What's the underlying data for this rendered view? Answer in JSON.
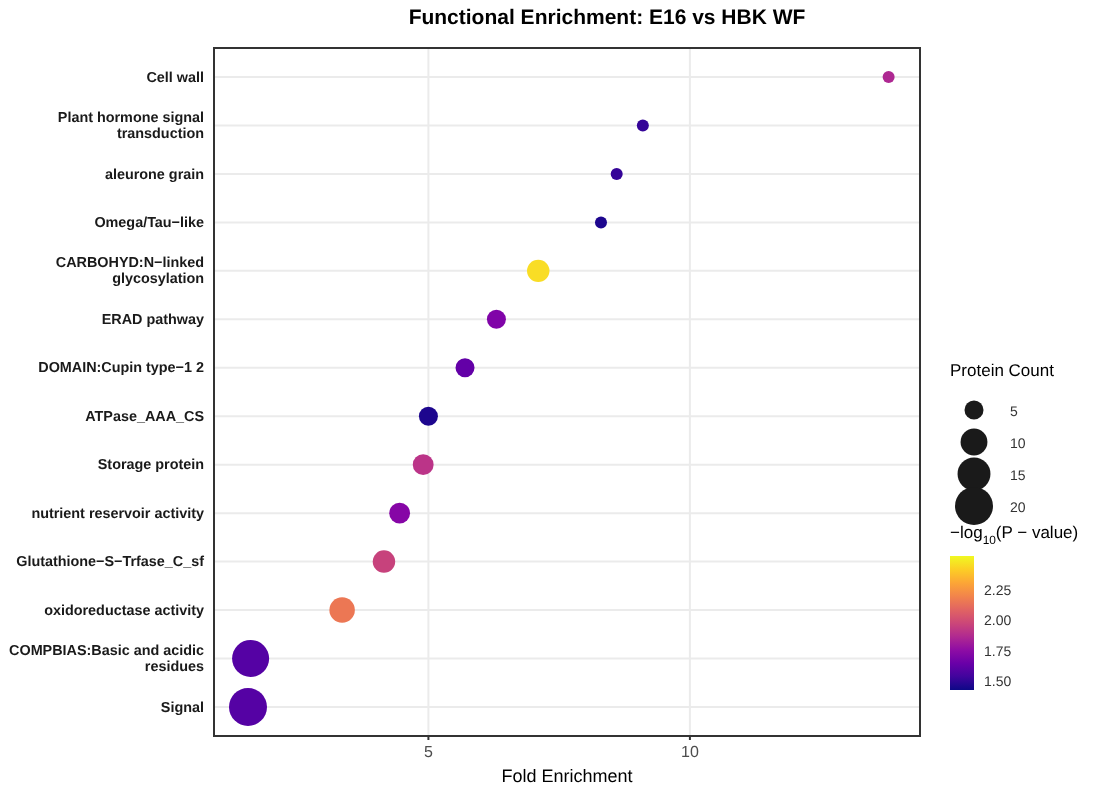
{
  "chart_data": {
    "type": "bubble",
    "title": "Functional Enrichment: E16 vs HBK WF",
    "xlabel": "Fold Enrichment",
    "legend_title": "Protein Count",
    "clabel": "−log$_{10}$(P − value)",
    "categories": [
      "Cell wall",
      "Plant hormone signal transduction",
      "aleurone grain",
      "Omega/Tau−like",
      "CARBOHYD:N−linked glycosylation",
      "ERAD pathway",
      "DOMAIN:Cupin type−1 2",
      "ATPase_AAA_CS",
      "Storage protein",
      "nutrient reservoir activity",
      "Glutathione−S−Trfase_C_sf",
      "oxidoreductase activity",
      "COMPBIAS:Basic and acidic residues",
      "Signal"
    ],
    "orientation": "horizontal",
    "values": [
      13.8,
      9.1,
      8.6,
      8.3,
      7.1,
      6.3,
      5.7,
      5.0,
      4.9,
      4.45,
      4.15,
      3.35,
      1.6,
      1.55
    ],
    "sizes": [
      2,
      2,
      2,
      2,
      7,
      5,
      5,
      5,
      6,
      6,
      7,
      9,
      19,
      20
    ],
    "size_legend": [
      5,
      10,
      15,
      20
    ],
    "cvalues": [
      1.85,
      1.5,
      1.5,
      1.45,
      2.45,
      1.7,
      1.62,
      1.45,
      1.9,
      1.72,
      1.95,
      2.15,
      1.58,
      1.58
    ],
    "clim": [
      1.42,
      2.52
    ],
    "cticks": [
      {
        "value": 1.5,
        "label": "1.50"
      },
      1.75,
      {
        "value": 2.0,
        "label": "2.00"
      },
      2.25
    ],
    "xlim": [
      0.9,
      14.4
    ],
    "xticks": [
      5,
      10
    ],
    "grid": true
  }
}
